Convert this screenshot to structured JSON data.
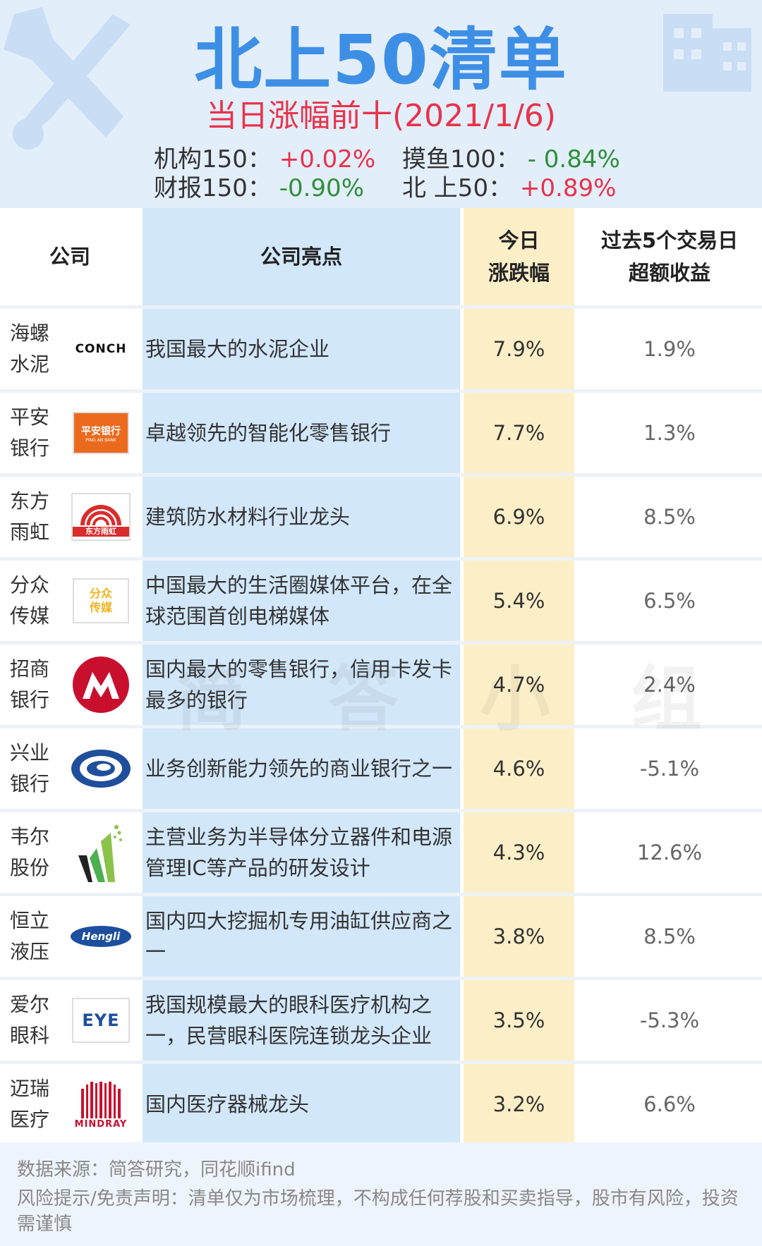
{
  "header": {
    "title": "北上50清单",
    "subtitle": "当日涨幅前十(2021/1/6)",
    "indices": [
      {
        "label": "机构150：",
        "value": "+0.02%"
      },
      {
        "label": "摸鱼100：",
        "value": "- 0.84%"
      },
      {
        "label": "财报150：",
        "value": "-0.90%"
      },
      {
        "label": "北  上50：",
        "value": "+0.89%"
      }
    ],
    "colors": {
      "up": "#e8334a",
      "down": "#2f8f3a",
      "title": "#3d8fe6"
    }
  },
  "table": {
    "headers": {
      "company": "公司",
      "highlight": "公司亮点",
      "change_line1": "今日",
      "change_line2": "涨跌幅",
      "excess_line1": "过去5个交易日",
      "excess_line2": "超额收益"
    },
    "rows": [
      {
        "name1": "海螺",
        "name2": "水泥",
        "logo": "CONCH",
        "highlight": "我国最大的水泥企业",
        "change": "7.9%",
        "excess": "1.9%"
      },
      {
        "name1": "平安",
        "name2": "银行",
        "logo": "平安银行",
        "logo_sub": "PING AN BANK",
        "highlight": "卓越领先的智能化零售银行",
        "change": "7.7%",
        "excess": "1.3%"
      },
      {
        "name1": "东方",
        "name2": "雨虹",
        "logo": "东方雨虹",
        "highlight": "建筑防水材料行业龙头",
        "change": "6.9%",
        "excess": "8.5%"
      },
      {
        "name1": "分众",
        "name2": "传媒",
        "logo": "分众传媒",
        "highlight": "中国最大的生活圈媒体平台，在全球范围首创电梯媒体",
        "change": "5.4%",
        "excess": "6.5%"
      },
      {
        "name1": "招商",
        "name2": "银行",
        "logo": "",
        "highlight": "国内最大的零售银行，信用卡发卡最多的银行",
        "change": "4.7%",
        "excess": "2.4%"
      },
      {
        "name1": "兴业",
        "name2": "银行",
        "logo": "",
        "highlight": "业务创新能力领先的商业银行之一",
        "change": "4.6%",
        "excess": "-5.1%"
      },
      {
        "name1": "韦尔",
        "name2": "股份",
        "logo": "",
        "highlight": "主营业务为半导体分立器件和电源管理IC等产品的研发设计",
        "change": "4.3%",
        "excess": "12.6%"
      },
      {
        "name1": "恒立",
        "name2": "液压",
        "logo": "Hengli",
        "highlight": "国内四大挖掘机专用油缸供应商之一",
        "change": "3.8%",
        "excess": "8.5%"
      },
      {
        "name1": "爱尔",
        "name2": "眼科",
        "logo": "EYE",
        "highlight": "我国规模最大的眼科医疗机构之一，民营眼科医院连锁龙头企业",
        "change": "3.5%",
        "excess": "-5.3%"
      },
      {
        "name1": "迈瑞",
        "name2": "医疗",
        "logo": "MINDRAY",
        "highlight": "国内医疗器械龙头",
        "change": "3.2%",
        "excess": "6.6%"
      }
    ]
  },
  "watermark": "简 答 小 组",
  "footer": {
    "source": "数据来源：简答研究，同花顺ifind",
    "disclaimer": "风险提示/免责声明：清单仅为市场梳理，不构成任何荐股和买卖指导，股市有风险，投资需谨慎"
  }
}
